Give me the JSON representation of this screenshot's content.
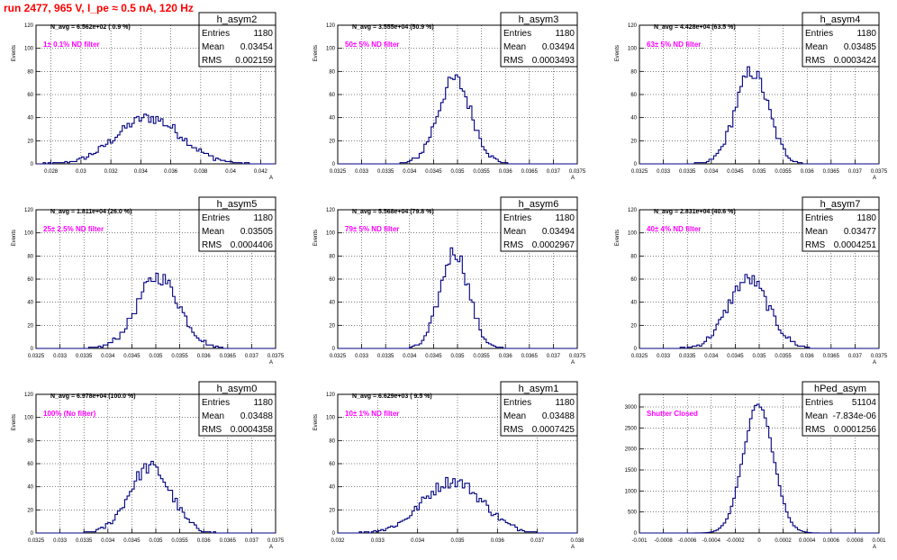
{
  "title": "run 2477,   965 V, I_pe ≈ 0.5 nA, 120 Hz",
  "chart_data": [
    {
      "type": "histogram",
      "name": "h_asym2",
      "navg": "N_avg = 6.562e+02 ( 0.9 %)",
      "note": "1± 0.1% ND filter",
      "stats": {
        "Entries": "1180",
        "Mean": "0.03454",
        "RMS": "0.002159"
      },
      "xlim": [
        0.027,
        0.043
      ],
      "ylim": [
        0,
        120
      ],
      "xticks": [
        "0.028",
        "0.03",
        "0.032",
        "0.034",
        "0.036",
        "0.038",
        "0.04",
        "0.042"
      ],
      "yticks": [
        0,
        20,
        40,
        60,
        80,
        100,
        120
      ],
      "ylabel": "Events",
      "xlabel": "",
      "mean": 0.03454,
      "rms": 0.002159,
      "peak": 40,
      "n_bins": 100
    },
    {
      "type": "histogram",
      "name": "h_asym3",
      "navg": "N_avg = 3.555e+04 (50.9 %)",
      "note": "50± 5% ND filter",
      "stats": {
        "Entries": "1180",
        "Mean": "0.03494",
        "RMS": "0.0003493"
      },
      "xlim": [
        0.0325,
        0.0375
      ],
      "ylim": [
        0,
        120
      ],
      "xticks": [
        "0.0325",
        "0.033",
        "0.0335",
        "0.034",
        "0.0345",
        "0.035",
        "0.0355",
        "0.036",
        "0.0365",
        "0.037",
        "0.0375"
      ],
      "yticks": [
        0,
        20,
        40,
        60,
        80,
        100,
        120
      ],
      "ylabel": "Events",
      "xlabel": "",
      "mean": 0.03494,
      "rms": 0.0003493,
      "peak": 73,
      "n_bins": 100
    },
    {
      "type": "histogram",
      "name": "h_asym4",
      "navg": "N_avg = 4.428e+04 (63.5 %)",
      "note": "63± 5% ND filter",
      "stats": {
        "Entries": "1180",
        "Mean": "0.03485",
        "RMS": "0.0003424"
      },
      "xlim": [
        0.0325,
        0.0375
      ],
      "ylim": [
        0,
        120
      ],
      "xticks": [
        "0.0325",
        "0.033",
        "0.0335",
        "0.034",
        "0.0345",
        "0.035",
        "0.0355",
        "0.036",
        "0.0365",
        "0.037",
        "0.0375"
      ],
      "yticks": [
        0,
        20,
        40,
        60,
        80,
        100,
        120
      ],
      "ylabel": "Events",
      "xlabel": "",
      "mean": 0.03485,
      "rms": 0.0003424,
      "peak": 80,
      "n_bins": 100
    },
    {
      "type": "histogram",
      "name": "h_asym5",
      "navg": "N_avg = 1.811e+04 (26.0 %)",
      "note": "25± 2.5% ND filter",
      "stats": {
        "Entries": "1180",
        "Mean": "0.03505",
        "RMS": "0.0004406"
      },
      "xlim": [
        0.0325,
        0.0375
      ],
      "ylim": [
        0,
        120
      ],
      "xticks": [
        "0.0325",
        "0.033",
        "0.0335",
        "0.034",
        "0.0345",
        "0.035",
        "0.0355",
        "0.036",
        "0.0365",
        "0.037",
        "0.0375"
      ],
      "yticks": [
        0,
        20,
        40,
        60,
        80,
        100,
        120
      ],
      "ylabel": "Events",
      "xlabel": "",
      "mean": 0.03505,
      "rms": 0.0004406,
      "peak": 62,
      "n_bins": 100
    },
    {
      "type": "histogram",
      "name": "h_asym6",
      "navg": "N_avg = 5.568e+04 (79.8 %)",
      "note": "79± 5% ND filter",
      "stats": {
        "Entries": "1180",
        "Mean": "0.03494",
        "RMS": "0.0002967"
      },
      "xlim": [
        0.0325,
        0.0375
      ],
      "ylim": [
        0,
        120
      ],
      "xticks": [
        "0.0325",
        "0.033",
        "0.0335",
        "0.034",
        "0.0345",
        "0.035",
        "0.0355",
        "0.036",
        "0.0365",
        "0.037",
        "0.0375"
      ],
      "yticks": [
        0,
        20,
        40,
        60,
        80,
        100,
        120
      ],
      "ylabel": "Events",
      "xlabel": "",
      "mean": 0.03494,
      "rms": 0.0002967,
      "peak": 84,
      "n_bins": 100
    },
    {
      "type": "histogram",
      "name": "h_asym7",
      "navg": "N_avg = 2.831e+04 (40.6 %)",
      "note": "40± 4% ND filter",
      "stats": {
        "Entries": "1180",
        "Mean": "0.03477",
        "RMS": "0.0004251"
      },
      "xlim": [
        0.0325,
        0.0375
      ],
      "ylim": [
        0,
        120
      ],
      "xticks": [
        "0.0325",
        "0.033",
        "0.0335",
        "0.034",
        "0.0345",
        "0.035",
        "0.0355",
        "0.036",
        "0.0365",
        "0.037",
        "0.0375"
      ],
      "yticks": [
        0,
        20,
        40,
        60,
        80,
        100,
        120
      ],
      "ylabel": "Events",
      "xlabel": "",
      "mean": 0.03477,
      "rms": 0.0004251,
      "peak": 60,
      "n_bins": 100
    },
    {
      "type": "histogram",
      "name": "h_asym0",
      "navg": "N_avg = 6.978e+04 (100.0 %)",
      "note": "100% (No filter)",
      "stats": {
        "Entries": "1180",
        "Mean": "0.03488",
        "RMS": "0.0004358"
      },
      "xlim": [
        0.0325,
        0.0375
      ],
      "ylim": [
        0,
        120
      ],
      "xticks": [
        "0.0325",
        "0.033",
        "0.0335",
        "0.034",
        "0.0345",
        "0.035",
        "0.0355",
        "0.036",
        "0.0365",
        "0.037",
        "0.0375"
      ],
      "yticks": [
        0,
        20,
        40,
        60,
        80,
        100,
        120
      ],
      "ylabel": "Events",
      "xlabel": "",
      "mean": 0.03488,
      "rms": 0.0004358,
      "peak": 57,
      "n_bins": 100
    },
    {
      "type": "histogram",
      "name": "h_asym1",
      "navg": "N_avg = 6.629e+03 ( 9.5 %)",
      "note": "10± 1% ND filter",
      "stats": {
        "Entries": "1180",
        "Mean": "0.03488",
        "RMS": "0.0007425"
      },
      "xlim": [
        0.032,
        0.038
      ],
      "ylim": [
        0,
        120
      ],
      "xticks": [
        "0.032",
        "0.033",
        "0.034",
        "0.035",
        "0.036",
        "0.037",
        "0.038"
      ],
      "yticks": [
        0,
        20,
        40,
        60,
        80,
        100,
        120
      ],
      "ylabel": "Events",
      "xlabel": "",
      "mean": 0.03488,
      "rms": 0.0007425,
      "peak": 45,
      "n_bins": 100
    },
    {
      "type": "histogram",
      "name": "hPed_asym",
      "navg": "",
      "note": "Shutter Closed",
      "stats": {
        "Entries": "51104",
        "Mean": "-7.834e-06",
        "RMS": "0.0001256"
      },
      "xlim": [
        -0.001,
        0.001
      ],
      "ylim": [
        0,
        3300
      ],
      "xticks": [
        "-0.001",
        "-0.0008",
        "-0.0006",
        "-0.0004",
        "-0.0002",
        "0",
        "0.0002",
        "0.0004",
        "0.0006",
        "0.0008",
        "0.001"
      ],
      "yticks": [
        0,
        500,
        1000,
        1500,
        2000,
        2500,
        3000
      ],
      "ylabel": "",
      "xlabel": "",
      "mean": -7.834e-06,
      "rms": 0.0001256,
      "peak": 3050,
      "n_bins": 100
    }
  ],
  "colors": {
    "title": "#ff0000",
    "note": "#ff00ff",
    "hist": "#000080",
    "grid": "#000000"
  }
}
